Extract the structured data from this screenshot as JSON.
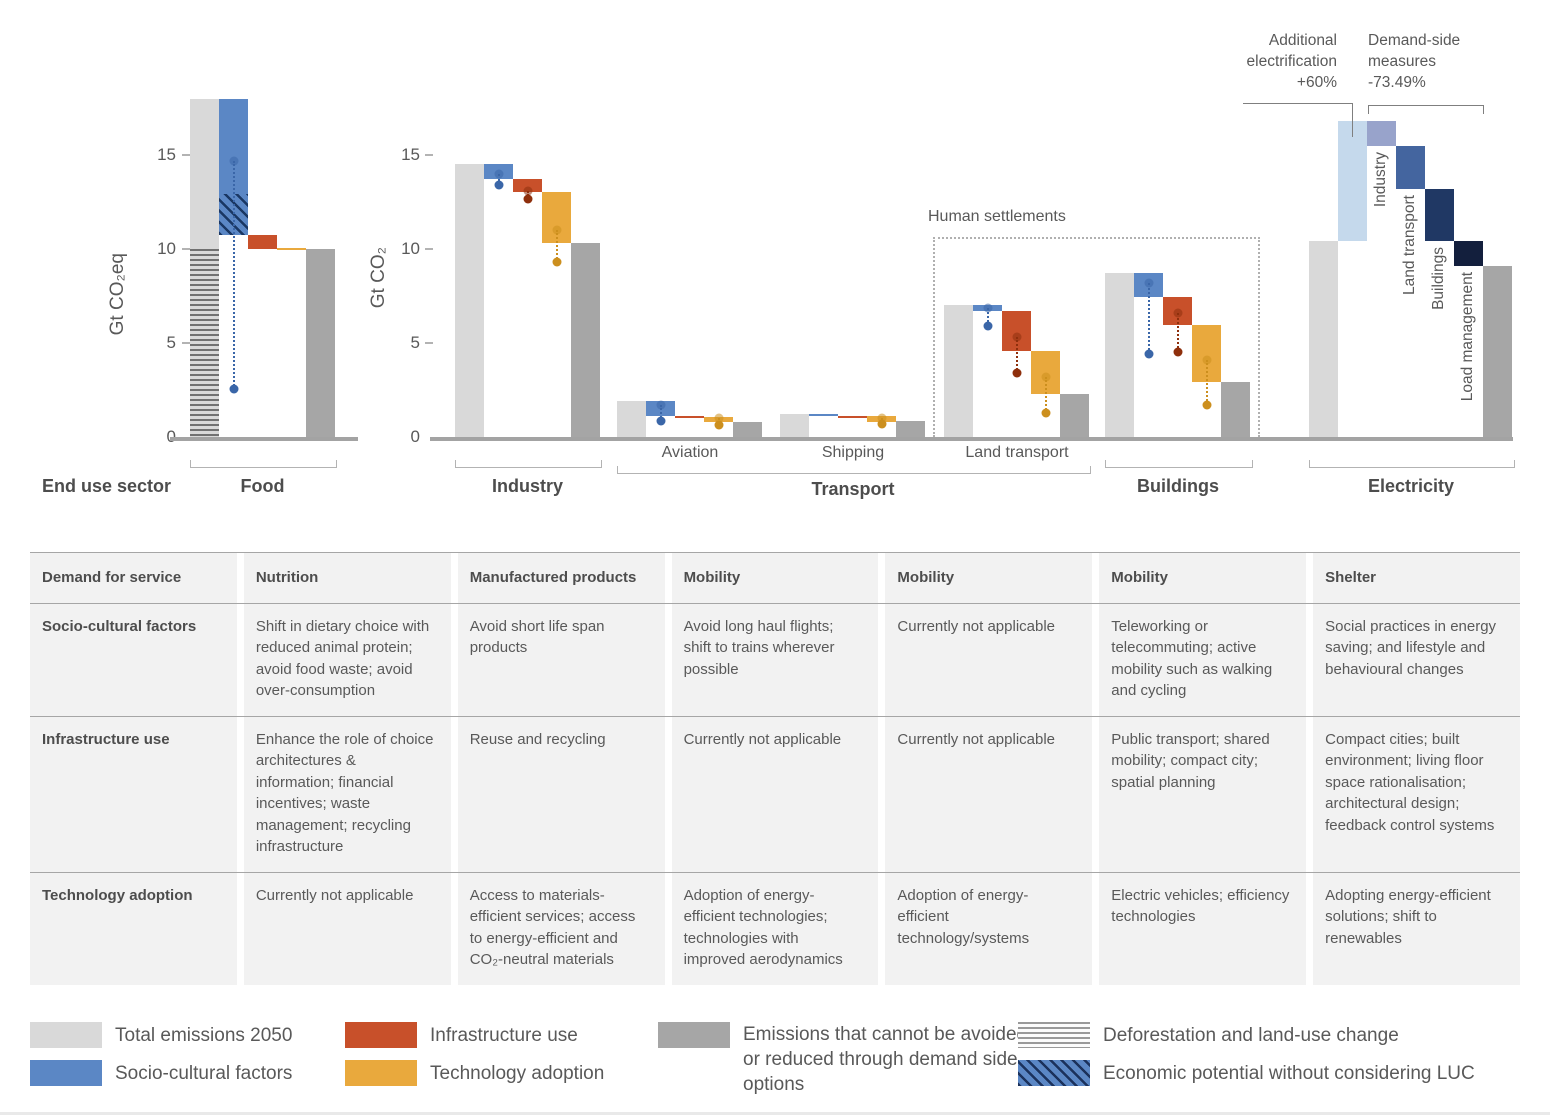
{
  "colors": {
    "total": "#d9d9d9",
    "socio": "#5b87c5",
    "infra": "#c8502a",
    "tech": "#e9a93d",
    "residual": "#a6a6a6",
    "dot_socio": "#3a66a8",
    "dot_infra": "#8e2f0c",
    "dot_tech": "#cc8f1e",
    "elec_add": "#c5d9ec",
    "elec_industry": "#98a3cb",
    "elec_land": "#44659f",
    "elec_buildings": "#203864",
    "elec_load": "#131f3d",
    "axis": "#a3a3a3",
    "text": "#595959"
  },
  "axis_left": {
    "ylabel": "Gt CO₂eq",
    "ticks": [
      0,
      5,
      10,
      15
    ]
  },
  "axis_right": {
    "ylabel": "Gt CO₂",
    "ticks": [
      0,
      5,
      10,
      15
    ]
  },
  "end_use_sector_label": "End use sector",
  "human_settlements_label": "Human settlements",
  "annotations": {
    "additional_electrification": {
      "label": "Additional electrification",
      "value": "+60%"
    },
    "demand_side": {
      "label": "Demand-side measures",
      "value": "-73.49%"
    }
  },
  "sector_labels": {
    "food": "Food",
    "industry": "Industry",
    "transport": "Transport",
    "aviation": "Aviation",
    "shipping": "Shipping",
    "land_transport": "Land transport",
    "buildings": "Buildings",
    "electricity": "Electricity"
  },
  "chart_data": {
    "type": "bar",
    "subtype": "stepped-mitigation-potential-waterfall",
    "ylim": [
      0,
      18.5
    ],
    "unit_left": "Gt CO₂eq",
    "unit_right": "Gt CO₂",
    "groups": [
      {
        "id": "food",
        "sector": "Food",
        "bars": [
          {
            "kind": "total",
            "from": 0,
            "to": 18.0,
            "overlay": "landuse",
            "o_from": 0,
            "o_to": 10.0
          },
          {
            "kind": "socio",
            "from": 10.75,
            "to": 18.0,
            "overlay": "econ",
            "o_from": 10.75,
            "o_to": 12.9,
            "dot": 14.7,
            "whisker": 2.55
          },
          {
            "kind": "infra",
            "from": 10.0,
            "to": 10.75
          },
          {
            "kind": "tech",
            "from": 9.93,
            "to": 10.05
          },
          {
            "kind": "residual",
            "from": 0,
            "to": 10.0
          }
        ]
      },
      {
        "id": "industry",
        "sector": "Industry",
        "bars": [
          {
            "kind": "total",
            "from": 0,
            "to": 14.5
          },
          {
            "kind": "socio",
            "from": 13.7,
            "to": 14.5,
            "dot": 14.0,
            "whisker": 13.4
          },
          {
            "kind": "infra",
            "from": 13.05,
            "to": 13.7,
            "dot": 13.1,
            "whisker": 12.65
          },
          {
            "kind": "tech",
            "from": 10.3,
            "to": 13.05,
            "dot": 11.0,
            "whisker": 9.3
          },
          {
            "kind": "residual",
            "from": 0,
            "to": 10.3
          }
        ]
      },
      {
        "id": "aviation",
        "sector": "Aviation",
        "bars": [
          {
            "kind": "total",
            "from": 0,
            "to": 1.9
          },
          {
            "kind": "socio",
            "from": 1.1,
            "to": 1.9,
            "dot": 1.7,
            "whisker": 0.87
          },
          {
            "kind": "infra",
            "from": 1.04,
            "to": 1.12
          },
          {
            "kind": "tech",
            "from": 0.78,
            "to": 1.05,
            "dot": 1.0,
            "whisker": 0.63
          },
          {
            "kind": "residual",
            "from": 0,
            "to": 0.8
          }
        ]
      },
      {
        "id": "shipping",
        "sector": "Shipping",
        "bars": [
          {
            "kind": "total",
            "from": 0,
            "to": 1.2
          },
          {
            "kind": "socio",
            "from": 1.14,
            "to": 1.22
          },
          {
            "kind": "infra",
            "from": 1.05,
            "to": 1.13
          },
          {
            "kind": "tech",
            "from": 0.8,
            "to": 1.1,
            "dot": 1.0,
            "whisker": 0.7
          },
          {
            "kind": "residual",
            "from": 0,
            "to": 0.85
          }
        ]
      },
      {
        "id": "land_transport",
        "sector": "Land transport",
        "bars": [
          {
            "kind": "total",
            "from": 0,
            "to": 7.0
          },
          {
            "kind": "socio",
            "from": 6.7,
            "to": 7.0,
            "dot": 6.85,
            "whisker": 5.9
          },
          {
            "kind": "infra",
            "from": 4.6,
            "to": 6.7,
            "dot": 5.3,
            "whisker": 3.4
          },
          {
            "kind": "tech",
            "from": 2.3,
            "to": 4.6,
            "dot": 3.2,
            "whisker": 1.3
          },
          {
            "kind": "residual",
            "from": 0,
            "to": 2.3
          }
        ]
      },
      {
        "id": "buildings",
        "sector": "Buildings",
        "bars": [
          {
            "kind": "total",
            "from": 0,
            "to": 8.7
          },
          {
            "kind": "socio",
            "from": 7.45,
            "to": 8.7,
            "dot": 8.2,
            "whisker": 4.4
          },
          {
            "kind": "infra",
            "from": 5.95,
            "to": 7.45,
            "dot": 6.6,
            "whisker": 4.5
          },
          {
            "kind": "tech",
            "from": 2.9,
            "to": 5.95,
            "dot": 4.1,
            "whisker": 1.7
          },
          {
            "kind": "residual",
            "from": 0,
            "to": 2.9
          }
        ]
      },
      {
        "id": "electricity",
        "sector": "Electricity",
        "bars": [
          {
            "kind": "total",
            "from": 0,
            "to": 10.4
          },
          {
            "kind": "elec_add",
            "from": 10.4,
            "to": 16.8
          },
          {
            "kind": "elec_industry",
            "from": 15.5,
            "to": 16.8,
            "rot_label": "Industry"
          },
          {
            "kind": "elec_land",
            "from": 13.2,
            "to": 15.5,
            "rot_label": "Land transport"
          },
          {
            "kind": "elec_buildings",
            "from": 10.4,
            "to": 13.2,
            "rot_label": "Buildings"
          },
          {
            "kind": "elec_load",
            "from": 9.1,
            "to": 10.4,
            "rot_label": "Load management"
          },
          {
            "kind": "residual",
            "from": 0,
            "to": 9.1
          }
        ]
      }
    ]
  },
  "table": {
    "headers": [
      "Demand for service",
      "Nutrition",
      "Manufactured products",
      "Mobility",
      "Mobility",
      "Mobility",
      "Shelter"
    ],
    "rows": [
      {
        "label": "Socio-cultural factors",
        "cells": [
          "Shift in dietary choice with reduced animal protein; avoid food waste; avoid over-consumption",
          "Avoid short life span products",
          "Avoid long haul flights; shift to trains wherever possible",
          "Currently not applicable",
          "Teleworking or telecommuting; active mobility such as walking and cycling",
          "Social practices in energy saving; and lifestyle and behavioural changes"
        ]
      },
      {
        "label": "Infrastructure use",
        "cells": [
          "Enhance the role of choice architectures & information; financial incentives; waste management; recycling infrastructure",
          "Reuse and recycling",
          "Currently not applicable",
          "Currently not applicable",
          "Public transport; shared mobility; compact city; spatial planning",
          "Compact cities; built environment; living floor space rationalisation; architectural design; feedback control systems"
        ]
      },
      {
        "label": "Technology adoption",
        "cells": [
          "Currently not applicable",
          "Access to materials-efficient services; access to energy-efficient and CO₂-neutral materials",
          "Adoption of energy-efficient technologies; technologies with improved aerodynamics",
          "Adoption of energy-efficient technology/systems",
          "Electric vehicles; efficiency technologies",
          "Adopting energy-efficient solutions; shift to renewables"
        ]
      }
    ]
  },
  "legend": {
    "items": [
      {
        "id": "total",
        "label": "Total emissions 2050"
      },
      {
        "id": "socio",
        "label": "Socio-cultural factors"
      },
      {
        "id": "infra",
        "label": "Infrastructure use"
      },
      {
        "id": "tech",
        "label": "Technology adoption"
      },
      {
        "id": "residual",
        "label": "Emissions that cannot be avoided or reduced through demand side options"
      },
      {
        "id": "landuse",
        "label": "Deforestation and land-use change"
      },
      {
        "id": "econ",
        "label": "Economic potential without considering LUC"
      }
    ]
  }
}
